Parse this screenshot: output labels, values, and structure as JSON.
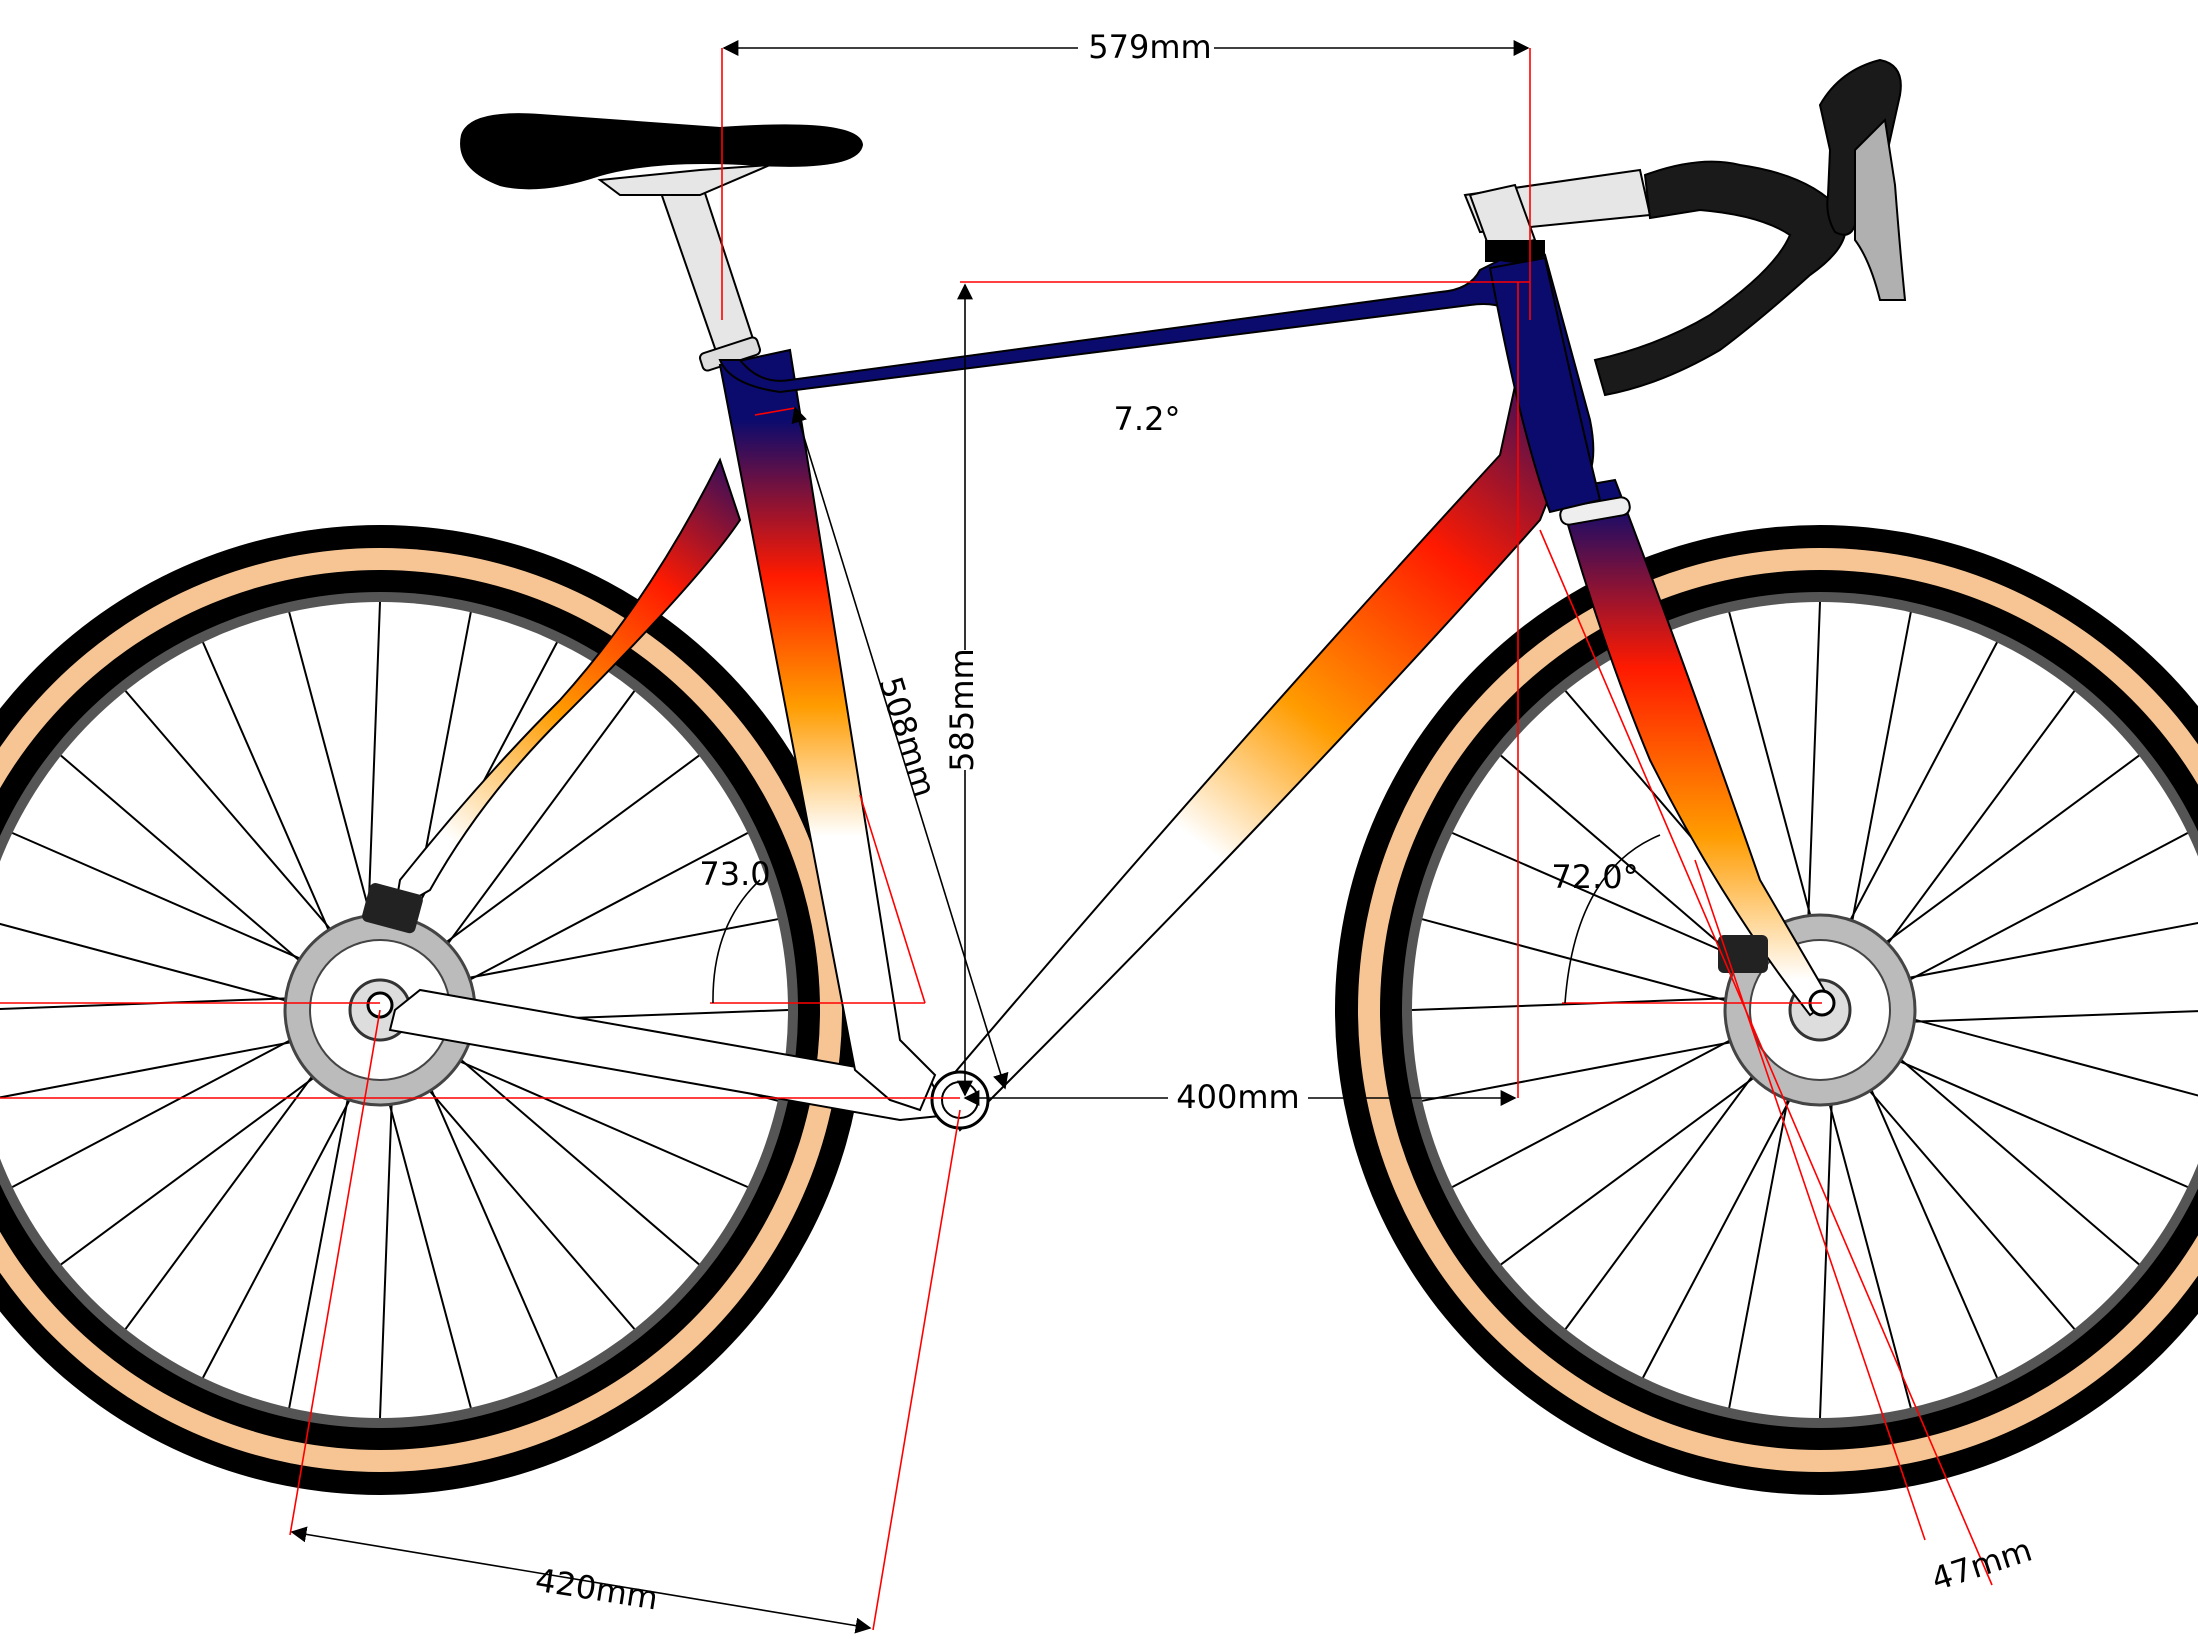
{
  "diagram": {
    "dimensions": {
      "top_tube_effective": "579mm",
      "stack": "585mm",
      "seat_tube": "508mm",
      "reach": "400mm",
      "chainstay": "420mm",
      "fork_offset": "47mm"
    },
    "angles": {
      "top_tube_slope": "7.2°",
      "seat_tube_angle": "73.0",
      "head_tube_angle": "72.0°"
    },
    "colors": {
      "frame_top": "#0b0b6e",
      "frame_mid": "#ff1a00",
      "frame_orange": "#ff9c00",
      "frame_bottom": "#ffffff",
      "tire_tan": "#f7c594",
      "tire_black": "#000000",
      "dimension_line": "#000000",
      "construction_line": "#ff0000",
      "bar_tape": "#1a1a1a",
      "component_grey": "#e6e6e6"
    }
  }
}
